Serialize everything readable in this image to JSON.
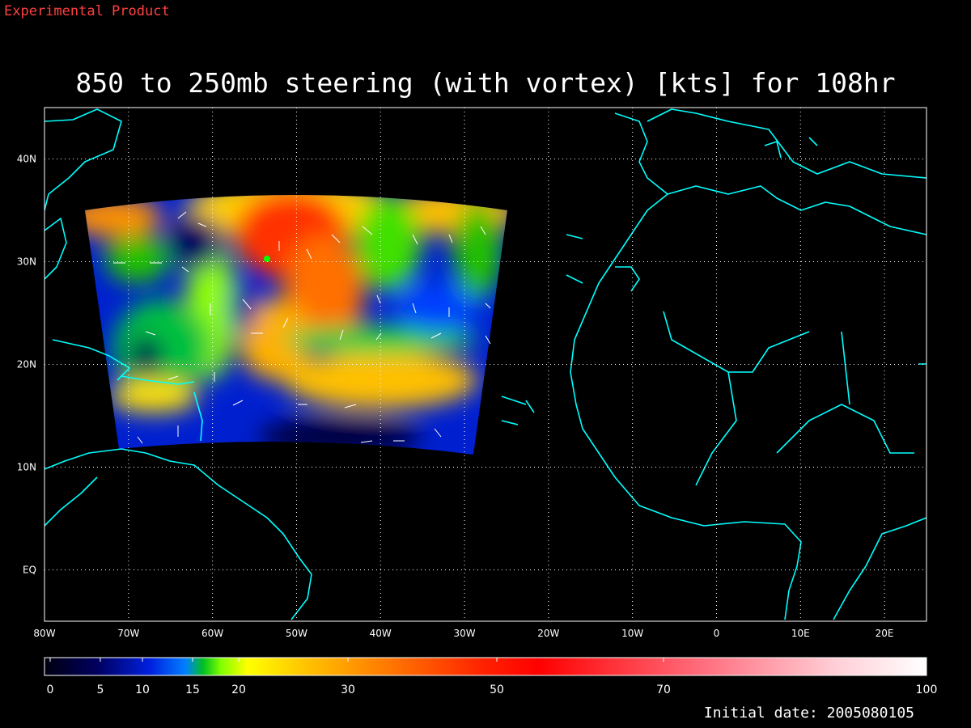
{
  "header": {
    "label": "Experimental Product"
  },
  "map": {
    "title": "850 to 250mb steering (with vortex) [kts] for 108hr",
    "xlim": [
      -80,
      25
    ],
    "ylim": [
      -5,
      45
    ],
    "xticks": [
      {
        "value": -80,
        "label": "80W"
      },
      {
        "value": -70,
        "label": "70W"
      },
      {
        "value": -60,
        "label": "60W"
      },
      {
        "value": -50,
        "label": "50W"
      },
      {
        "value": -40,
        "label": "40W"
      },
      {
        "value": -30,
        "label": "30W"
      },
      {
        "value": -20,
        "label": "20W"
      },
      {
        "value": -10,
        "label": "10W"
      },
      0,
      {
        "value": 10,
        "label": "10E"
      },
      {
        "value": 20,
        "label": "20E"
      }
    ],
    "yticks": [
      {
        "value": 0,
        "label": "EQ"
      },
      {
        "value": 10,
        "label": "10N"
      },
      {
        "value": 20,
        "label": "20N"
      },
      {
        "value": 30,
        "label": "30N"
      },
      {
        "value": 40,
        "label": "40N"
      }
    ]
  },
  "colorbar": {
    "ticks": [
      0,
      5,
      10,
      15,
      20,
      30,
      50,
      70,
      100
    ]
  },
  "footer": {
    "label": "Initial date: 2005080105"
  }
}
